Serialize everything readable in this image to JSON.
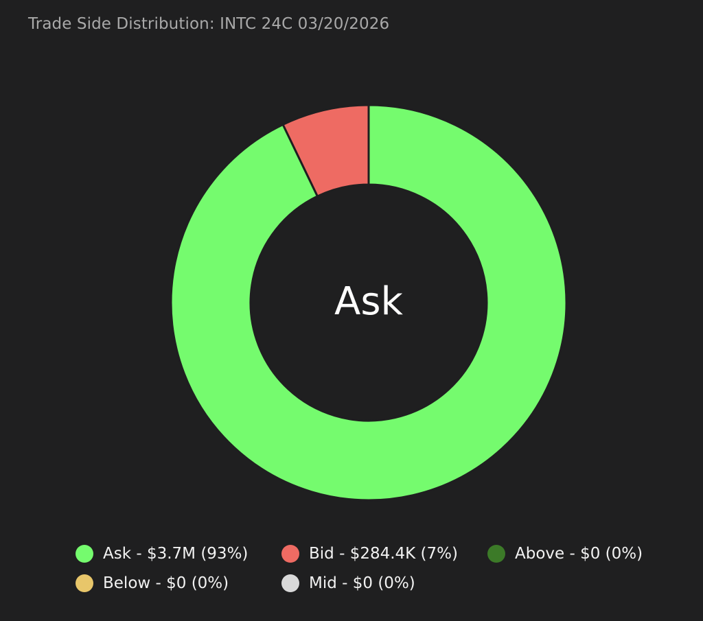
{
  "chart_data": {
    "type": "pie",
    "donut": true,
    "title": "Trade Side Distribution: INTC 24C 03/20/2026",
    "center_label": "Ask",
    "legend_position": "bottom",
    "slices": [
      {
        "name": "Ask",
        "value": 3700000,
        "percent": 93,
        "color": "#75fb6e",
        "legend": "Ask - $3.7M (93%)"
      },
      {
        "name": "Bid",
        "value": 284400,
        "percent": 7,
        "color": "#ee6b63",
        "legend": "Bid - $284.4K (7%)"
      },
      {
        "name": "Above",
        "value": 0,
        "percent": 0,
        "color": "#3c7a28",
        "legend": "Above - $0 (0%)"
      },
      {
        "name": "Below",
        "value": 0,
        "percent": 0,
        "color": "#e8c66a",
        "legend": "Below - $0 (0%)"
      },
      {
        "name": "Mid",
        "value": 0,
        "percent": 0,
        "color": "#d9d9d9",
        "legend": "Mid - $0 (0%)"
      }
    ]
  },
  "colors": {
    "background": "#1f1f20",
    "title": "#a9a9a9",
    "slice_gap": "#1f1f20"
  }
}
